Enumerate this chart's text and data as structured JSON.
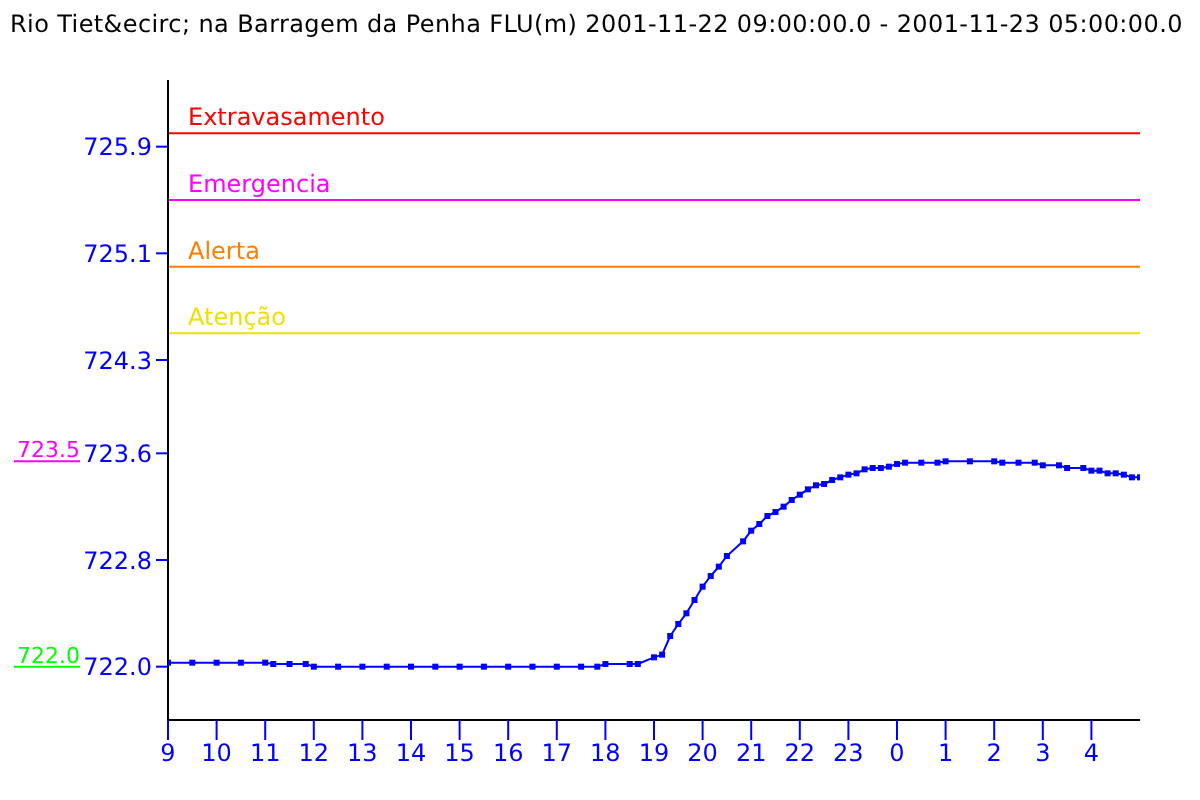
{
  "chart_data": {
    "type": "line",
    "title": "Rio Tiet&ecirc; na Barragem da Penha FLU(m) 2001-11-22 09:00:00.0 - 2001-11-23 05:00:00.0",
    "x": [
      "2001-11-22T09:00",
      "2001-11-22T09:30",
      "2001-11-22T10:00",
      "2001-11-22T10:30",
      "2001-11-22T11:00",
      "2001-11-22T11:10",
      "2001-11-22T11:30",
      "2001-11-22T11:50",
      "2001-11-22T12:00",
      "2001-11-22T12:30",
      "2001-11-22T13:00",
      "2001-11-22T13:30",
      "2001-11-22T14:00",
      "2001-11-22T14:30",
      "2001-11-22T15:00",
      "2001-11-22T15:30",
      "2001-11-22T16:00",
      "2001-11-22T16:30",
      "2001-11-22T17:00",
      "2001-11-22T17:30",
      "2001-11-22T17:50",
      "2001-11-22T18:00",
      "2001-11-22T18:30",
      "2001-11-22T18:40",
      "2001-11-22T19:00",
      "2001-11-22T19:10",
      "2001-11-22T19:20",
      "2001-11-22T19:30",
      "2001-11-22T19:40",
      "2001-11-22T19:50",
      "2001-11-22T20:00",
      "2001-11-22T20:10",
      "2001-11-22T20:20",
      "2001-11-22T20:30",
      "2001-11-22T20:50",
      "2001-11-22T21:00",
      "2001-11-22T21:10",
      "2001-11-22T21:20",
      "2001-11-22T21:30",
      "2001-11-22T21:40",
      "2001-11-22T21:50",
      "2001-11-22T22:00",
      "2001-11-22T22:10",
      "2001-11-22T22:20",
      "2001-11-22T22:30",
      "2001-11-22T22:40",
      "2001-11-22T22:50",
      "2001-11-22T23:00",
      "2001-11-22T23:10",
      "2001-11-22T23:20",
      "2001-11-22T23:30",
      "2001-11-22T23:40",
      "2001-11-22T23:50",
      "2001-11-23T00:00",
      "2001-11-23T00:10",
      "2001-11-23T00:30",
      "2001-11-23T00:50",
      "2001-11-23T01:00",
      "2001-11-23T01:30",
      "2001-11-23T02:00",
      "2001-11-23T02:10",
      "2001-11-23T02:30",
      "2001-11-23T02:50",
      "2001-11-23T03:00",
      "2001-11-23T03:20",
      "2001-11-23T03:30",
      "2001-11-23T03:50",
      "2001-11-23T04:00",
      "2001-11-23T04:10",
      "2001-11-23T04:20",
      "2001-11-23T04:30",
      "2001-11-23T04:40",
      "2001-11-23T04:50",
      "2001-11-23T05:00"
    ],
    "values": [
      722.03,
      722.03,
      722.03,
      722.03,
      722.03,
      722.02,
      722.02,
      722.02,
      722.0,
      722.0,
      722.0,
      722.0,
      722.0,
      722.0,
      722.0,
      722.0,
      722.0,
      722.0,
      722.0,
      722.0,
      722.0,
      722.02,
      722.02,
      722.02,
      722.07,
      722.09,
      722.23,
      722.32,
      722.4,
      722.5,
      722.6,
      722.68,
      722.75,
      722.83,
      722.94,
      723.02,
      723.07,
      723.13,
      723.16,
      723.2,
      723.25,
      723.29,
      723.33,
      723.36,
      723.37,
      723.4,
      723.42,
      723.44,
      723.45,
      723.48,
      723.49,
      723.49,
      723.5,
      723.52,
      723.53,
      723.53,
      723.53,
      723.54,
      723.54,
      723.54,
      723.53,
      723.53,
      723.53,
      723.51,
      723.51,
      723.49,
      723.49,
      723.47,
      723.47,
      723.45,
      723.45,
      723.44,
      723.42,
      723.42
    ],
    "color": "#0000ff",
    "marker": "square",
    "xlim": [
      "2001-11-22T09:00",
      "2001-11-23T05:00"
    ],
    "xticks": [
      {
        "value": "2001-11-22T09:00",
        "label": "9"
      },
      {
        "value": "2001-11-22T10:00",
        "label": "10"
      },
      {
        "value": "2001-11-22T11:00",
        "label": "11"
      },
      {
        "value": "2001-11-22T12:00",
        "label": "12"
      },
      {
        "value": "2001-11-22T13:00",
        "label": "13"
      },
      {
        "value": "2001-11-22T14:00",
        "label": "14"
      },
      {
        "value": "2001-11-22T15:00",
        "label": "15"
      },
      {
        "value": "2001-11-22T16:00",
        "label": "16"
      },
      {
        "value": "2001-11-22T17:00",
        "label": "17"
      },
      {
        "value": "2001-11-22T18:00",
        "label": "18"
      },
      {
        "value": "2001-11-22T19:00",
        "label": "19"
      },
      {
        "value": "2001-11-22T20:00",
        "label": "20"
      },
      {
        "value": "2001-11-22T21:00",
        "label": "21"
      },
      {
        "value": "2001-11-22T22:00",
        "label": "22"
      },
      {
        "value": "2001-11-22T23:00",
        "label": "23"
      },
      {
        "value": "2001-11-23T00:00",
        "label": "0"
      },
      {
        "value": "2001-11-23T01:00",
        "label": "1"
      },
      {
        "value": "2001-11-23T02:00",
        "label": "2"
      },
      {
        "value": "2001-11-23T03:00",
        "label": "3"
      },
      {
        "value": "2001-11-23T04:00",
        "label": "4"
      }
    ],
    "ylim": [
      721.6,
      726.4
    ],
    "yticks": [
      {
        "value": 722,
        "label": "722.0"
      },
      722.8,
      723.6,
      724.3,
      725.1,
      725.9
    ],
    "ref_lines": [
      {
        "axis": "y",
        "value": 726.0,
        "label": "Extravasamento",
        "color": "#ff0000"
      },
      {
        "axis": "y",
        "value": 725.5,
        "label": "Emergencia",
        "color": "#ff00ff"
      },
      {
        "axis": "y",
        "value": 725.0,
        "label": "Alerta",
        "color": "#ff8000"
      },
      {
        "axis": "y",
        "value": 724.5,
        "label": "Atenção",
        "color": "#f0e000"
      }
    ],
    "annotations": [
      "723.5",
      "722.0"
    ]
  }
}
